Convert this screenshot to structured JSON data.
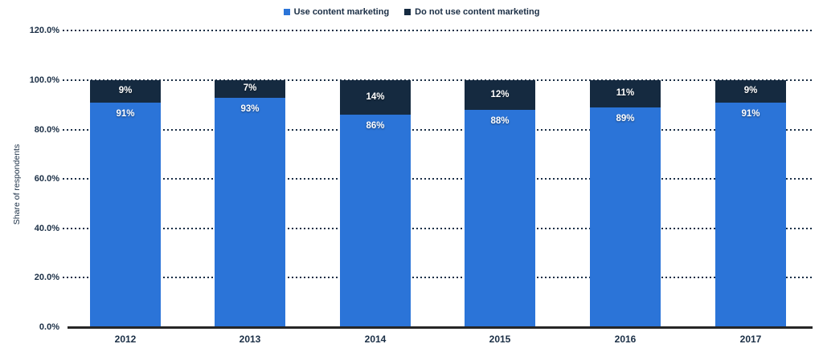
{
  "chart_data": {
    "type": "bar",
    "stacked": true,
    "title": "",
    "categories": [
      "2012",
      "2013",
      "2014",
      "2015",
      "2016",
      "2017"
    ],
    "series": [
      {
        "name": "Use content marketing",
        "color": "#2b74d8",
        "values": [
          91,
          93,
          86,
          88,
          89,
          91
        ]
      },
      {
        "name": "Do not use content marketing",
        "color": "#152a40",
        "values": [
          9,
          7,
          14,
          12,
          11,
          9
        ]
      }
    ],
    "xlabel": "",
    "ylabel": "Share of respondents",
    "ylim": [
      0,
      120
    ],
    "y_ticks": [
      {
        "label": "120.0%",
        "value": 120
      },
      {
        "label": "100.0%",
        "value": 100
      },
      {
        "label": "80.0%",
        "value": 80
      },
      {
        "label": "60.0%",
        "value": 60
      },
      {
        "label": "40.0%",
        "value": 40
      },
      {
        "label": "20.0%",
        "value": 20
      },
      {
        "label": "0.0%",
        "value": 0
      }
    ],
    "value_label_format": "{value}%",
    "grid": "dotted-horizontal",
    "legend_position": "top-center"
  },
  "colors": {
    "background": "#ffffff",
    "axis_text": "#1a2e45",
    "gridline": "#1a2e45",
    "axis_line": "#262626",
    "data_label": "#ffffff"
  }
}
